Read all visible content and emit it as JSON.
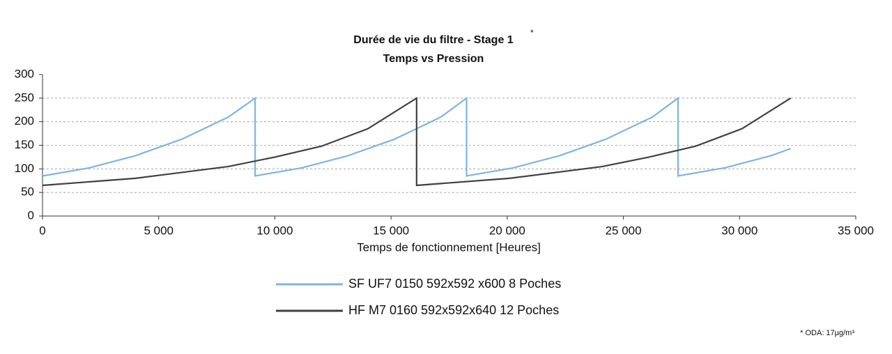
{
  "chart_data": {
    "type": "line",
    "title": "Durée de vie du filtre - Stage 1",
    "title_superscript": "*",
    "subtitle": "Temps vs Pression",
    "xlabel": "Temps de fonctionnement [Heures]",
    "footnote": "* ODA: 17µg/m³",
    "xlim": [
      0,
      35000
    ],
    "xticks": [
      0,
      {
        "value": 5000,
        "label": "5 000"
      },
      {
        "value": 10000,
        "label": "10 000"
      },
      {
        "value": 15000,
        "label": "15 000"
      },
      {
        "value": 20000,
        "label": "20 000"
      },
      {
        "value": 25000,
        "label": "25 000"
      },
      {
        "value": 30000,
        "label": "30 000"
      },
      {
        "value": 35000,
        "label": "35 000"
      }
    ],
    "ylim": [
      0,
      300
    ],
    "yticks": [
      0,
      50,
      100,
      150,
      200,
      250,
      300
    ],
    "grid": true,
    "legend": "bottom",
    "series": [
      {
        "name": "SF UF7 0150 592x592 x600 8 Poches",
        "color": "#7fb4e0",
        "x": [
          0,
          2000,
          4000,
          6000,
          8000,
          9150,
          9150,
          11150,
          13150,
          15150,
          17150,
          18250,
          18250,
          20250,
          22250,
          24250,
          26250,
          27350,
          27350,
          29350,
          31350,
          32200
        ],
        "values": [
          85,
          102,
          128,
          163,
          210,
          250,
          85,
          102,
          128,
          163,
          210,
          250,
          85,
          102,
          128,
          163,
          210,
          250,
          85,
          102,
          128,
          143
        ]
      },
      {
        "name": "HF M7 0160 592x592x640 12 Poches",
        "color": "#404044",
        "x": [
          0,
          4000,
          8000,
          10000,
          12000,
          14000,
          16100,
          16100,
          20100,
          24100,
          26100,
          28100,
          30100,
          32200
        ],
        "values": [
          65,
          80,
          105,
          125,
          148,
          185,
          250,
          65,
          80,
          105,
          125,
          148,
          185,
          250
        ]
      }
    ]
  }
}
